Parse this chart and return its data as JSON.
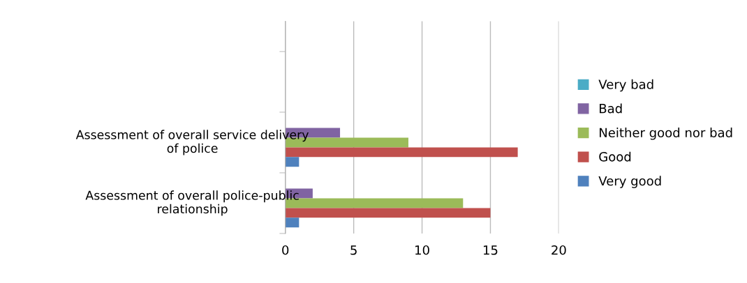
{
  "chart_data": {
    "type": "bar",
    "orientation": "horizontal",
    "categories": [
      null,
      "Assessment of overall service delivery\nof police",
      "Assessment of overall police-public\nrelationship"
    ],
    "series": [
      {
        "name": "Very bad",
        "color": "#4bacc6",
        "values": [
          null,
          0,
          0
        ]
      },
      {
        "name": "Bad",
        "color": "#8064a2",
        "values": [
          null,
          4,
          2
        ]
      },
      {
        "name": "Neither good nor bad",
        "color": "#9bbb59",
        "values": [
          null,
          9,
          13
        ]
      },
      {
        "name": "Good",
        "color": "#c0504d",
        "values": [
          null,
          17,
          15
        ]
      },
      {
        "name": "Very good",
        "color": "#4f81bd",
        "values": [
          null,
          1,
          1
        ]
      }
    ],
    "xlim": [
      0,
      20
    ],
    "xticks": [
      0,
      5,
      10,
      15,
      20
    ],
    "grid": "x",
    "legend": "right"
  }
}
